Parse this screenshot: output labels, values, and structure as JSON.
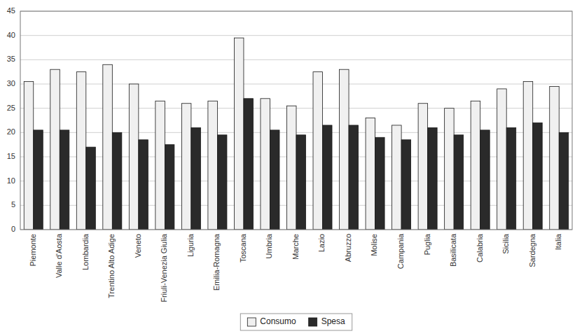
{
  "chart_data": {
    "type": "bar",
    "categories": [
      "Piemonte",
      "Valle d'Aosta",
      "Lombardia",
      "Trentino Alto Adige",
      "Veneto",
      "Friuli-Venezia Giulia",
      "Liguria",
      "Emilia-Romagna",
      "Toscana",
      "Umbria",
      "Marche",
      "Lazio",
      "Abruzzo",
      "Molise",
      "Campania",
      "Puglia",
      "Basilicata",
      "Calabria",
      "Sicilia",
      "Sardegna",
      "Italia"
    ],
    "series": [
      {
        "name": "Consumo",
        "color": "#f0f0f0",
        "values": [
          30.5,
          33.0,
          32.5,
          34.0,
          30.0,
          26.5,
          26.0,
          26.5,
          39.5,
          27.0,
          25.5,
          32.5,
          33.0,
          23.0,
          21.5,
          26.0,
          25.0,
          26.5,
          29.0,
          30.5,
          29.5
        ]
      },
      {
        "name": "Spesa",
        "color": "#2a2a2a",
        "values": [
          20.5,
          20.5,
          17.0,
          20.0,
          18.5,
          17.5,
          21.0,
          19.5,
          27.0,
          20.5,
          19.5,
          21.5,
          21.5,
          19.0,
          18.5,
          21.0,
          19.5,
          20.5,
          21.0,
          22.0,
          20.0
        ]
      }
    ],
    "ylim": [
      0,
      45
    ],
    "yticks": [
      0,
      5,
      10,
      15,
      20,
      25,
      30,
      35,
      40,
      45
    ],
    "grid": true,
    "legend": "bottom"
  }
}
